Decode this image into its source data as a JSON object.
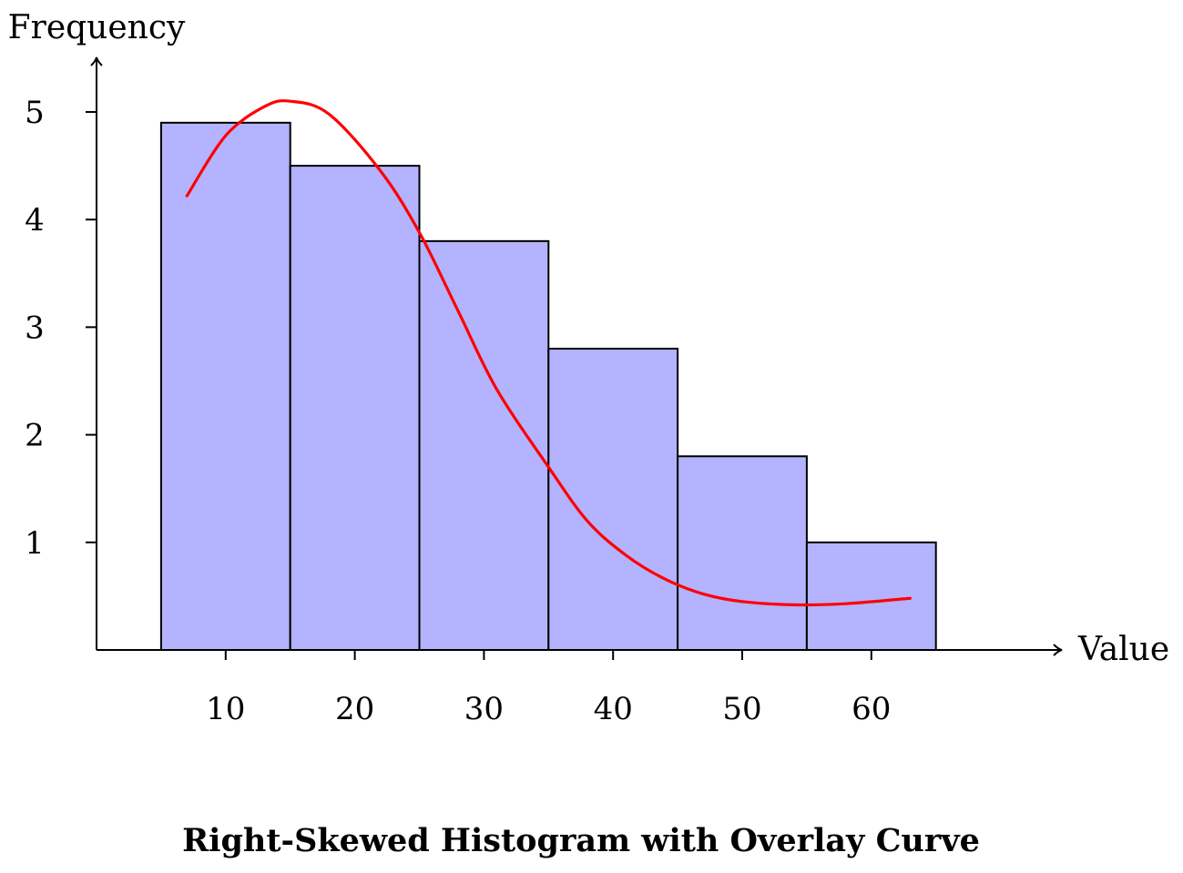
{
  "chart_data": {
    "type": "bar",
    "title": "Right-Skewed Histogram with Overlay Curve",
    "xlabel": "Value",
    "ylabel": "Frequency",
    "bins": [
      {
        "start": 5,
        "end": 15,
        "value": 4.9
      },
      {
        "start": 15,
        "end": 25,
        "value": 4.5
      },
      {
        "start": 25,
        "end": 35,
        "value": 3.8
      },
      {
        "start": 35,
        "end": 45,
        "value": 2.8
      },
      {
        "start": 45,
        "end": 55,
        "value": 1.8
      },
      {
        "start": 55,
        "end": 65,
        "value": 1.0
      }
    ],
    "x_ticks": [
      10,
      20,
      30,
      40,
      50,
      60
    ],
    "x_tick_labels": [
      "10",
      "20",
      "30",
      "40",
      "50",
      "60"
    ],
    "y_ticks": [
      1,
      2,
      3,
      4,
      5
    ],
    "y_tick_labels": [
      "1",
      "2",
      "3",
      "4",
      "5"
    ],
    "xlim": [
      0,
      75
    ],
    "ylim": [
      0,
      5.5
    ],
    "grid": false,
    "series": [
      {
        "type": "line",
        "x": [
          7,
          10,
          13,
          15,
          18,
          22,
          25,
          28,
          31,
          35,
          38,
          41,
          44,
          47,
          50,
          54,
          58,
          63
        ],
        "y": [
          4.22,
          4.78,
          5.05,
          5.1,
          4.98,
          4.45,
          3.88,
          3.15,
          2.42,
          1.7,
          1.2,
          0.88,
          0.66,
          0.52,
          0.45,
          0.42,
          0.43,
          0.48
        ]
      }
    ],
    "colors": {
      "bar_fill": "#b3b3ff",
      "bar_stroke": "#000000",
      "curve": "#ff0000",
      "axis": "#000000"
    }
  }
}
